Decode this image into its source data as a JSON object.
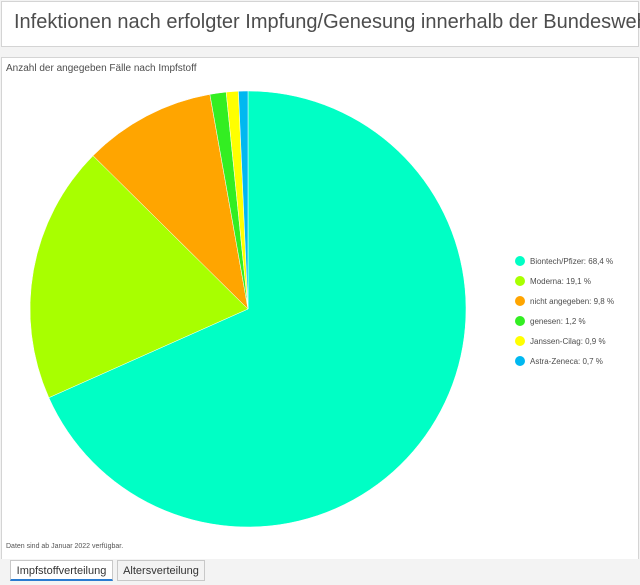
{
  "header": {
    "title": "Infektionen nach erfolgter Impfung/Genesung innerhalb der Bundeswehr"
  },
  "chart_data": {
    "type": "pie",
    "title": "Anzahl der angegeben Fälle nach Impfstoff",
    "slices": [
      {
        "label": "Biontech/Pfizer",
        "value": 68.4,
        "value_label": "68,4 %",
        "color": "#00ffc5"
      },
      {
        "label": "Moderna",
        "value": 19.1,
        "value_label": "19,1 %",
        "color": "#a8ff00"
      },
      {
        "label": "nicht angegeben",
        "value": 9.8,
        "value_label": "9,8 %",
        "color": "#ffa500"
      },
      {
        "label": "genesen",
        "value": 1.2,
        "value_label": "1,2 %",
        "color": "#33ee22"
      },
      {
        "label": "Janssen-Cilag",
        "value": 0.9,
        "value_label": "0,9 %",
        "color": "#ffff00"
      },
      {
        "label": "Astra-Zeneca",
        "value": 0.7,
        "value_label": "0,7 %",
        "color": "#00b8f0"
      }
    ],
    "legend_position": "right",
    "start": "12 o'clock",
    "direction": "clockwise"
  },
  "footnote": "Daten sind ab Januar 2022 verfügbar.",
  "tabs": [
    {
      "label": "Impfstoffverteilung",
      "active": true
    },
    {
      "label": "Altersverteilung",
      "active": false
    }
  ]
}
